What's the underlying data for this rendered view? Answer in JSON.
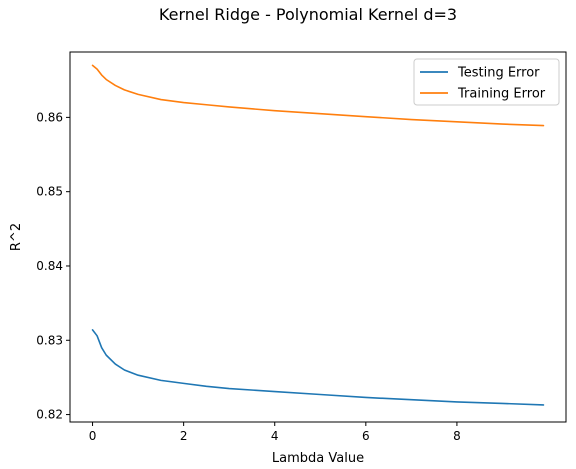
{
  "chart_data": {
    "type": "line",
    "title": "Kernel Ridge - Polynomial Kernel d=3",
    "xlabel": "Lambda Value",
    "ylabel": "R^2",
    "xlim": [
      -0.495,
      10.395
    ],
    "ylim": [
      0.819,
      0.8688
    ],
    "xticks": [
      0,
      2,
      4,
      6,
      8
    ],
    "xtick_labels": [
      "0",
      "2",
      "4",
      "6",
      "8"
    ],
    "yticks": [
      0.82,
      0.83,
      0.84,
      0.85,
      0.86
    ],
    "ytick_labels": [
      "0.82",
      "0.83",
      "0.84",
      "0.85",
      "0.86"
    ],
    "grid": false,
    "legend_position": "upper-right",
    "series": [
      {
        "name": "Testing Error",
        "color": "#1f77b4",
        "x": [
          0,
          0.1,
          0.2,
          0.3,
          0.5,
          0.7,
          1.0,
          1.5,
          2,
          2.5,
          3,
          4,
          5,
          6,
          7,
          8,
          9,
          9.9
        ],
        "y": [
          0.8314,
          0.8306,
          0.829,
          0.828,
          0.8268,
          0.826,
          0.8253,
          0.8246,
          0.8242,
          0.8238,
          0.8235,
          0.8231,
          0.8227,
          0.8223,
          0.822,
          0.8217,
          0.8215,
          0.8213
        ]
      },
      {
        "name": "Training Error",
        "color": "#ff7f0e",
        "x": [
          0,
          0.1,
          0.2,
          0.3,
          0.5,
          0.7,
          1.0,
          1.5,
          2,
          2.5,
          3,
          4,
          5,
          6,
          7,
          8,
          9,
          9.9
        ],
        "y": [
          0.867,
          0.8665,
          0.8657,
          0.8651,
          0.8643,
          0.8637,
          0.8631,
          0.8624,
          0.862,
          0.8617,
          0.8614,
          0.8609,
          0.8605,
          0.8601,
          0.8597,
          0.8594,
          0.8591,
          0.8589
        ]
      }
    ]
  }
}
